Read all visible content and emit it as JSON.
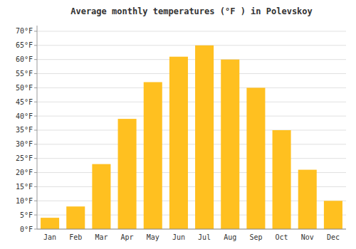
{
  "chart_data": {
    "type": "bar",
    "title": "Average monthly temperatures (°F ) in Polevskoy",
    "categories": [
      "Jan",
      "Feb",
      "Mar",
      "Apr",
      "May",
      "Jun",
      "Jul",
      "Aug",
      "Sep",
      "Oct",
      "Nov",
      "Dec"
    ],
    "values": [
      4,
      8,
      23,
      39,
      52,
      61,
      65,
      60,
      50,
      35,
      21,
      10
    ],
    "color": "#FFC020",
    "ylim": [
      0,
      72
    ],
    "yticks": [
      {
        "value": 0,
        "label": "0°F"
      },
      {
        "value": 5,
        "label": "5°F"
      },
      {
        "value": 10,
        "label": "10°F"
      },
      {
        "value": 15,
        "label": "15°F"
      },
      {
        "value": 20,
        "label": "20°F"
      },
      {
        "value": 25,
        "label": "25°F"
      },
      {
        "value": 30,
        "label": "30°F"
      },
      {
        "value": 35,
        "label": "35°F"
      },
      {
        "value": 40,
        "label": "40°F"
      },
      {
        "value": 45,
        "label": "45°F"
      },
      {
        "value": 50,
        "label": "50°F"
      },
      {
        "value": 55,
        "label": "55°F"
      },
      {
        "value": 60,
        "label": "60°F"
      },
      {
        "value": 65,
        "label": "65°F"
      },
      {
        "value": 70,
        "label": "70°F"
      }
    ],
    "grid": true
  }
}
